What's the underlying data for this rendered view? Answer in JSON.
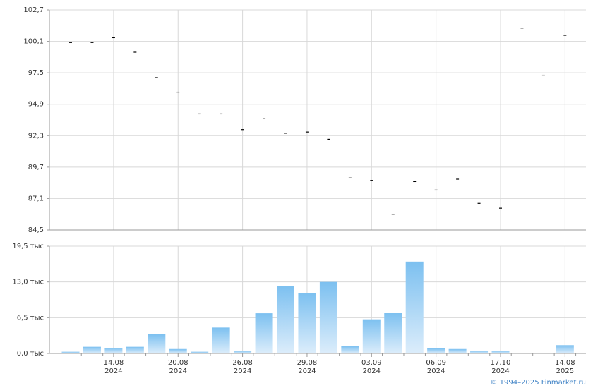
{
  "chart_data": [
    {
      "type": "scatter",
      "color": "#000000",
      "grid": true,
      "values": [
        100.0,
        100.0,
        100.4,
        99.2,
        97.1,
        95.9,
        94.1,
        94.1,
        92.8,
        93.7,
        92.5,
        92.6,
        92.0,
        88.8,
        88.6,
        85.8,
        88.5,
        87.8,
        88.7,
        86.7,
        86.3,
        101.2,
        97.3,
        100.6
      ],
      "ylim": [
        84.5,
        102.7
      ],
      "yticks": [
        {
          "value": 84.5,
          "label": "84,5"
        },
        {
          "value": 87.1,
          "label": "87,1"
        },
        {
          "value": 89.7,
          "label": "89,7"
        },
        {
          "value": 92.3,
          "label": "92,3"
        },
        {
          "value": 94.9,
          "label": "94,9"
        },
        {
          "value": 97.5,
          "label": "97,5"
        },
        {
          "value": 100.1,
          "label": "100,1"
        },
        {
          "value": 102.7,
          "label": "102,7"
        }
      ]
    },
    {
      "type": "bar",
      "color": "#7cc0f0",
      "grid": true,
      "categories": [
        null,
        null,
        [
          "14.08",
          "2024"
        ],
        null,
        null,
        [
          "20.08",
          "2024"
        ],
        null,
        null,
        [
          "26.08",
          "2024"
        ],
        null,
        null,
        [
          "29.08",
          "2024"
        ],
        null,
        null,
        [
          "03.09",
          "2024"
        ],
        null,
        null,
        [
          "06.09",
          "2024"
        ],
        null,
        null,
        [
          "17.10",
          "2024"
        ],
        null,
        null,
        [
          "14.08",
          "2025"
        ]
      ],
      "values": [
        0.3,
        1.2,
        1.0,
        1.2,
        3.5,
        0.8,
        0.3,
        4.7,
        0.5,
        7.3,
        12.3,
        11.0,
        13.0,
        1.3,
        6.2,
        7.4,
        16.7,
        0.9,
        0.8,
        0.5,
        0.5,
        0.1,
        0.1,
        1.5
      ],
      "ylim": [
        0,
        19.5
      ],
      "yticks": [
        {
          "value": 0,
          "label": "0,0 тыс"
        },
        {
          "value": 6.5,
          "label": "6,5 тыс"
        },
        {
          "value": 13,
          "label": "13,0 тыс"
        },
        {
          "value": 19.5,
          "label": "19,5 тыс"
        }
      ]
    }
  ],
  "footer": "© 1994–2025 Finmarket.ru"
}
